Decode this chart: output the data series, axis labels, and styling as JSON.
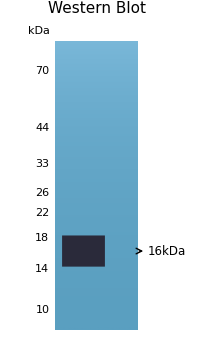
{
  "title": "Western Blot",
  "title_fontsize": 11,
  "title_color": "#000000",
  "kda_label": "kDa",
  "markers": [
    70,
    44,
    33,
    26,
    22,
    18,
    14,
    10
  ],
  "marker_label_fontsize": 8,
  "band_annotation_fontsize": 8.5,
  "gel_color_top": "#7ab8d9",
  "gel_color_bottom": "#5a9fc0",
  "band_color": "#2a2a3a",
  "background_color": "#ffffff",
  "fig_width": 2.03,
  "fig_height": 3.37,
  "dpi": 100
}
